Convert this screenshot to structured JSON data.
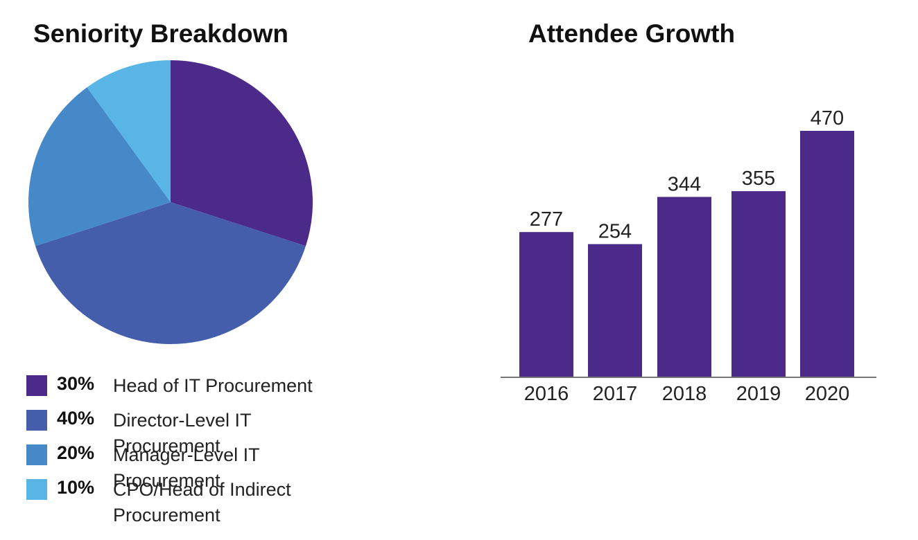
{
  "chart_data": [
    {
      "type": "pie",
      "title": "Seniority Breakdown",
      "slices": [
        {
          "pct_label": "30%",
          "label": "Head of IT Procurement",
          "value": 30,
          "color": "#4b2a8a"
        },
        {
          "pct_label": "40%",
          "label": "Director-Level IT Procurement",
          "value": 40,
          "color": "#445eab"
        },
        {
          "pct_label": "20%",
          "label": "Manager-Level IT Procurement",
          "value": 20,
          "color": "#4689c9"
        },
        {
          "pct_label": "10%",
          "label": "CPO/Head of Indirect Procurement",
          "value": 10,
          "color": "#58b5e6"
        }
      ]
    },
    {
      "type": "bar",
      "title": "Attendee Growth",
      "categories": [
        "2016",
        "2017",
        "2018",
        "2019",
        "2020"
      ],
      "values": [
        277,
        254,
        344,
        355,
        470
      ],
      "color": "#4b2a8a",
      "xlabel": "",
      "ylabel": ""
    }
  ]
}
